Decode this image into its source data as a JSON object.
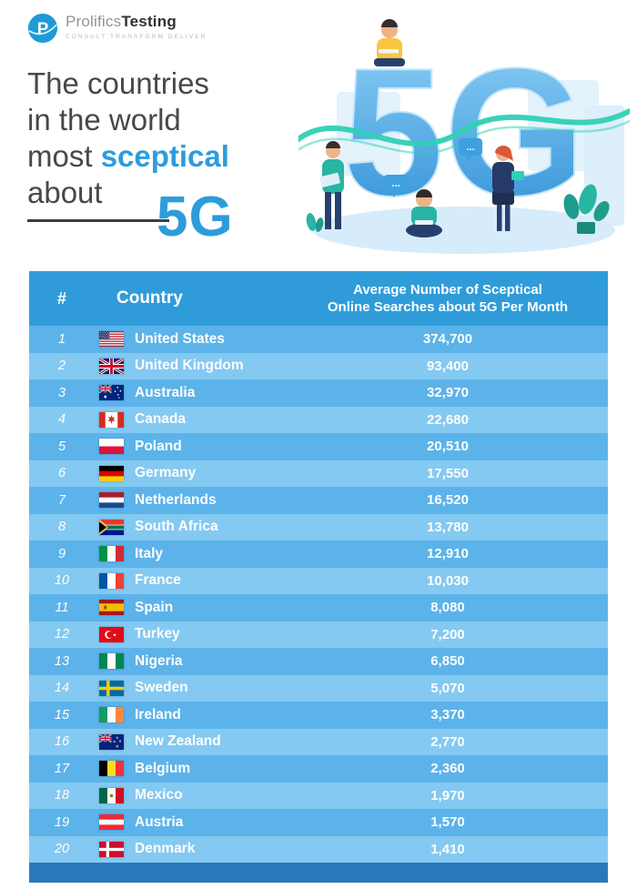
{
  "brand": {
    "logo_letter": "P",
    "name_regular": "Prolifics",
    "name_bold": "Testing",
    "tagline": "CONSULT   TRANSFORM   DELIVER"
  },
  "title": {
    "line1": "The countries",
    "line2": "in the world",
    "line3_pre": "most ",
    "line3_highlight": "sceptical",
    "line4": "about",
    "big": "5G"
  },
  "illustration": {
    "big_text": "5G",
    "bubble_text": "..."
  },
  "table": {
    "header_value_line1": "Average Number of Sceptical",
    "header_value_line2": "Online Searches about 5G Per Month"
  },
  "colors": {
    "accent_blue": "#2d9cdb",
    "heading_text": "#45484c",
    "header_blue": "#2f9cd9",
    "row_blue_dark": "#5cb3ea",
    "row_blue_light": "#84c9f1",
    "footer_blue": "#2b77bd",
    "wave_teal": "#2fd0b5"
  },
  "chart_data": {
    "type": "table",
    "title": "The countries in the world most sceptical about 5G",
    "columns": [
      "#",
      "Country",
      "Average Number of Sceptical Online Searches about 5G Per Month"
    ],
    "rows": [
      {
        "rank": "1",
        "flag": "us",
        "country": "United States",
        "value": "374,700"
      },
      {
        "rank": "2",
        "flag": "gb",
        "country": "United Kingdom",
        "value": "93,400"
      },
      {
        "rank": "3",
        "flag": "au",
        "country": "Australia",
        "value": "32,970"
      },
      {
        "rank": "4",
        "flag": "ca",
        "country": "Canada",
        "value": "22,680"
      },
      {
        "rank": "5",
        "flag": "pl",
        "country": "Poland",
        "value": "20,510"
      },
      {
        "rank": "6",
        "flag": "de",
        "country": "Germany",
        "value": "17,550"
      },
      {
        "rank": "7",
        "flag": "nl",
        "country": "Netherlands",
        "value": "16,520"
      },
      {
        "rank": "8",
        "flag": "za",
        "country": "South Africa",
        "value": "13,780"
      },
      {
        "rank": "9",
        "flag": "it",
        "country": "Italy",
        "value": "12,910"
      },
      {
        "rank": "10",
        "flag": "fr",
        "country": "France",
        "value": "10,030"
      },
      {
        "rank": "11",
        "flag": "es",
        "country": "Spain",
        "value": "8,080"
      },
      {
        "rank": "12",
        "flag": "tr",
        "country": "Turkey",
        "value": "7,200"
      },
      {
        "rank": "13",
        "flag": "ng",
        "country": "Nigeria",
        "value": "6,850"
      },
      {
        "rank": "14",
        "flag": "se",
        "country": "Sweden",
        "value": "5,070"
      },
      {
        "rank": "15",
        "flag": "ie",
        "country": "Ireland",
        "value": "3,370"
      },
      {
        "rank": "16",
        "flag": "nz",
        "country": "New Zealand",
        "value": "2,770"
      },
      {
        "rank": "17",
        "flag": "be",
        "country": "Belgium",
        "value": "2,360"
      },
      {
        "rank": "18",
        "flag": "mx",
        "country": "Mexico",
        "value": "1,970"
      },
      {
        "rank": "19",
        "flag": "at",
        "country": "Austria",
        "value": "1,570"
      },
      {
        "rank": "20",
        "flag": "dk",
        "country": "Denmark",
        "value": "1,410"
      }
    ]
  }
}
